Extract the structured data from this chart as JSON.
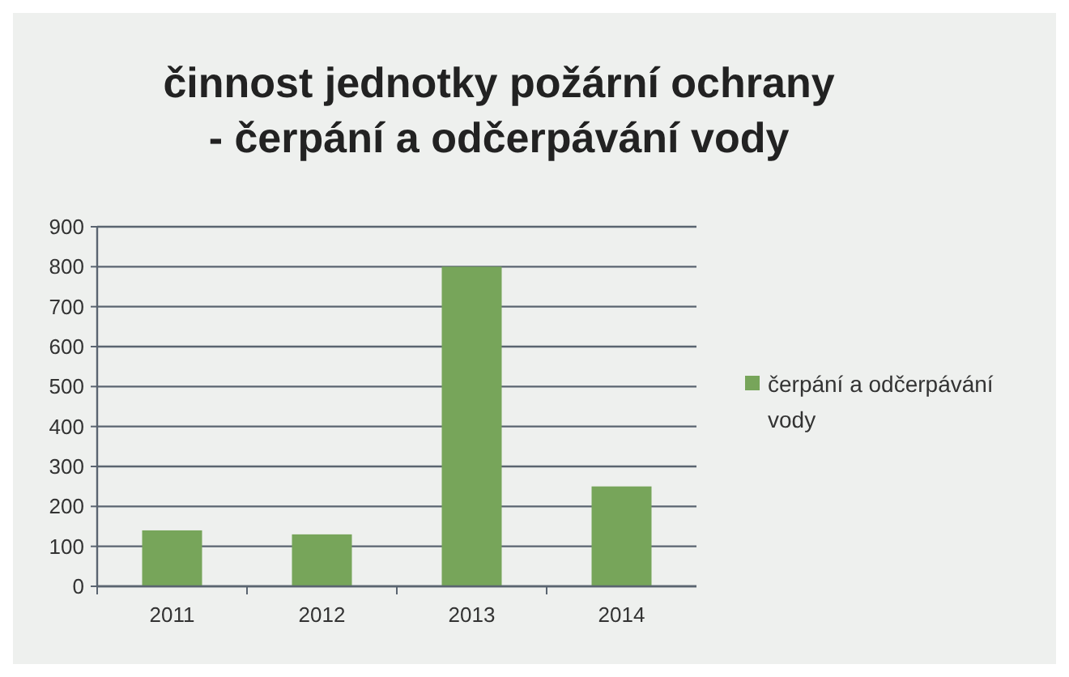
{
  "chart_data": {
    "type": "bar",
    "title": "činnost jednotky požární ochrany\n- čerpání a odčerpávání vody",
    "categories": [
      "2011",
      "2012",
      "2013",
      "2014"
    ],
    "series": [
      {
        "name": "čerpání a odčerpávání vody",
        "color": "#77a55a",
        "values": [
          140,
          130,
          800,
          250
        ]
      }
    ],
    "ylim": [
      0,
      900
    ],
    "yticks": [
      0,
      100,
      200,
      300,
      400,
      500,
      600,
      700,
      800,
      900
    ],
    "grid": "y",
    "legend": "right"
  }
}
